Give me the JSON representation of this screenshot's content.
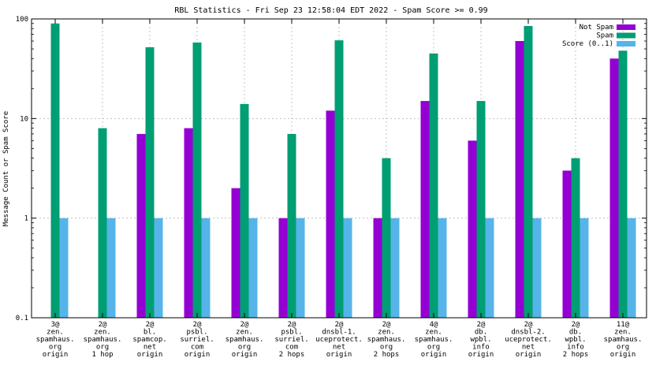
{
  "chart_data": {
    "type": "bar",
    "title": "RBL Statistics - Fri Sep 23 12:58:04 EDT 2022 - Spam Score >= 0.99",
    "xlabel": "",
    "ylabel": "Message Count or Spam Score",
    "yscale": "log",
    "ylim": [
      0.1,
      100
    ],
    "yticks": [
      "0.1",
      "1",
      "10",
      "100"
    ],
    "grid": true,
    "legend_position": "top-right",
    "categories": [
      [
        "3@",
        "zen.",
        "spamhaus.",
        "org",
        "origin"
      ],
      [
        "2@",
        "zen.",
        "spamhaus.",
        "org",
        "1 hop"
      ],
      [
        "2@",
        "bl.",
        "spamcop.",
        "net",
        "origin"
      ],
      [
        "2@",
        "psbl.",
        "surriel.",
        "com",
        "origin"
      ],
      [
        "2@",
        "zen.",
        "spamhaus.",
        "org",
        "origin"
      ],
      [
        "2@",
        "psbl.",
        "surriel.",
        "com",
        "2 hops"
      ],
      [
        "2@",
        "dnsbl-1.",
        "uceprotect.",
        "net",
        "origin"
      ],
      [
        "2@",
        "zen.",
        "spamhaus.",
        "org",
        "2 hops"
      ],
      [
        "4@",
        "zen.",
        "spamhaus.",
        "org",
        "origin"
      ],
      [
        "2@",
        "db.",
        "wpbl.",
        "info",
        "origin"
      ],
      [
        "2@",
        "dnsbl-2.",
        "uceprotect.",
        "net",
        "origin"
      ],
      [
        "2@",
        "db.",
        "wpbl.",
        "info",
        "2 hops"
      ],
      [
        "11@",
        "zen.",
        "spamhaus.",
        "org",
        "origin"
      ]
    ],
    "series": [
      {
        "name": "Not Spam",
        "color": "#9400d3",
        "values": [
          null,
          null,
          7,
          8,
          2,
          1,
          12,
          1,
          15,
          6,
          60,
          3,
          40
        ]
      },
      {
        "name": "Spam",
        "color": "#009e73",
        "values": [
          90,
          8,
          52,
          58,
          14,
          7,
          61,
          4,
          45,
          15,
          85,
          4,
          48
        ]
      },
      {
        "name": "Score (0..1)",
        "color": "#56b4e9",
        "values": [
          1,
          1,
          1,
          1,
          1,
          1,
          1,
          1,
          1,
          1,
          1,
          1,
          1
        ]
      }
    ]
  }
}
